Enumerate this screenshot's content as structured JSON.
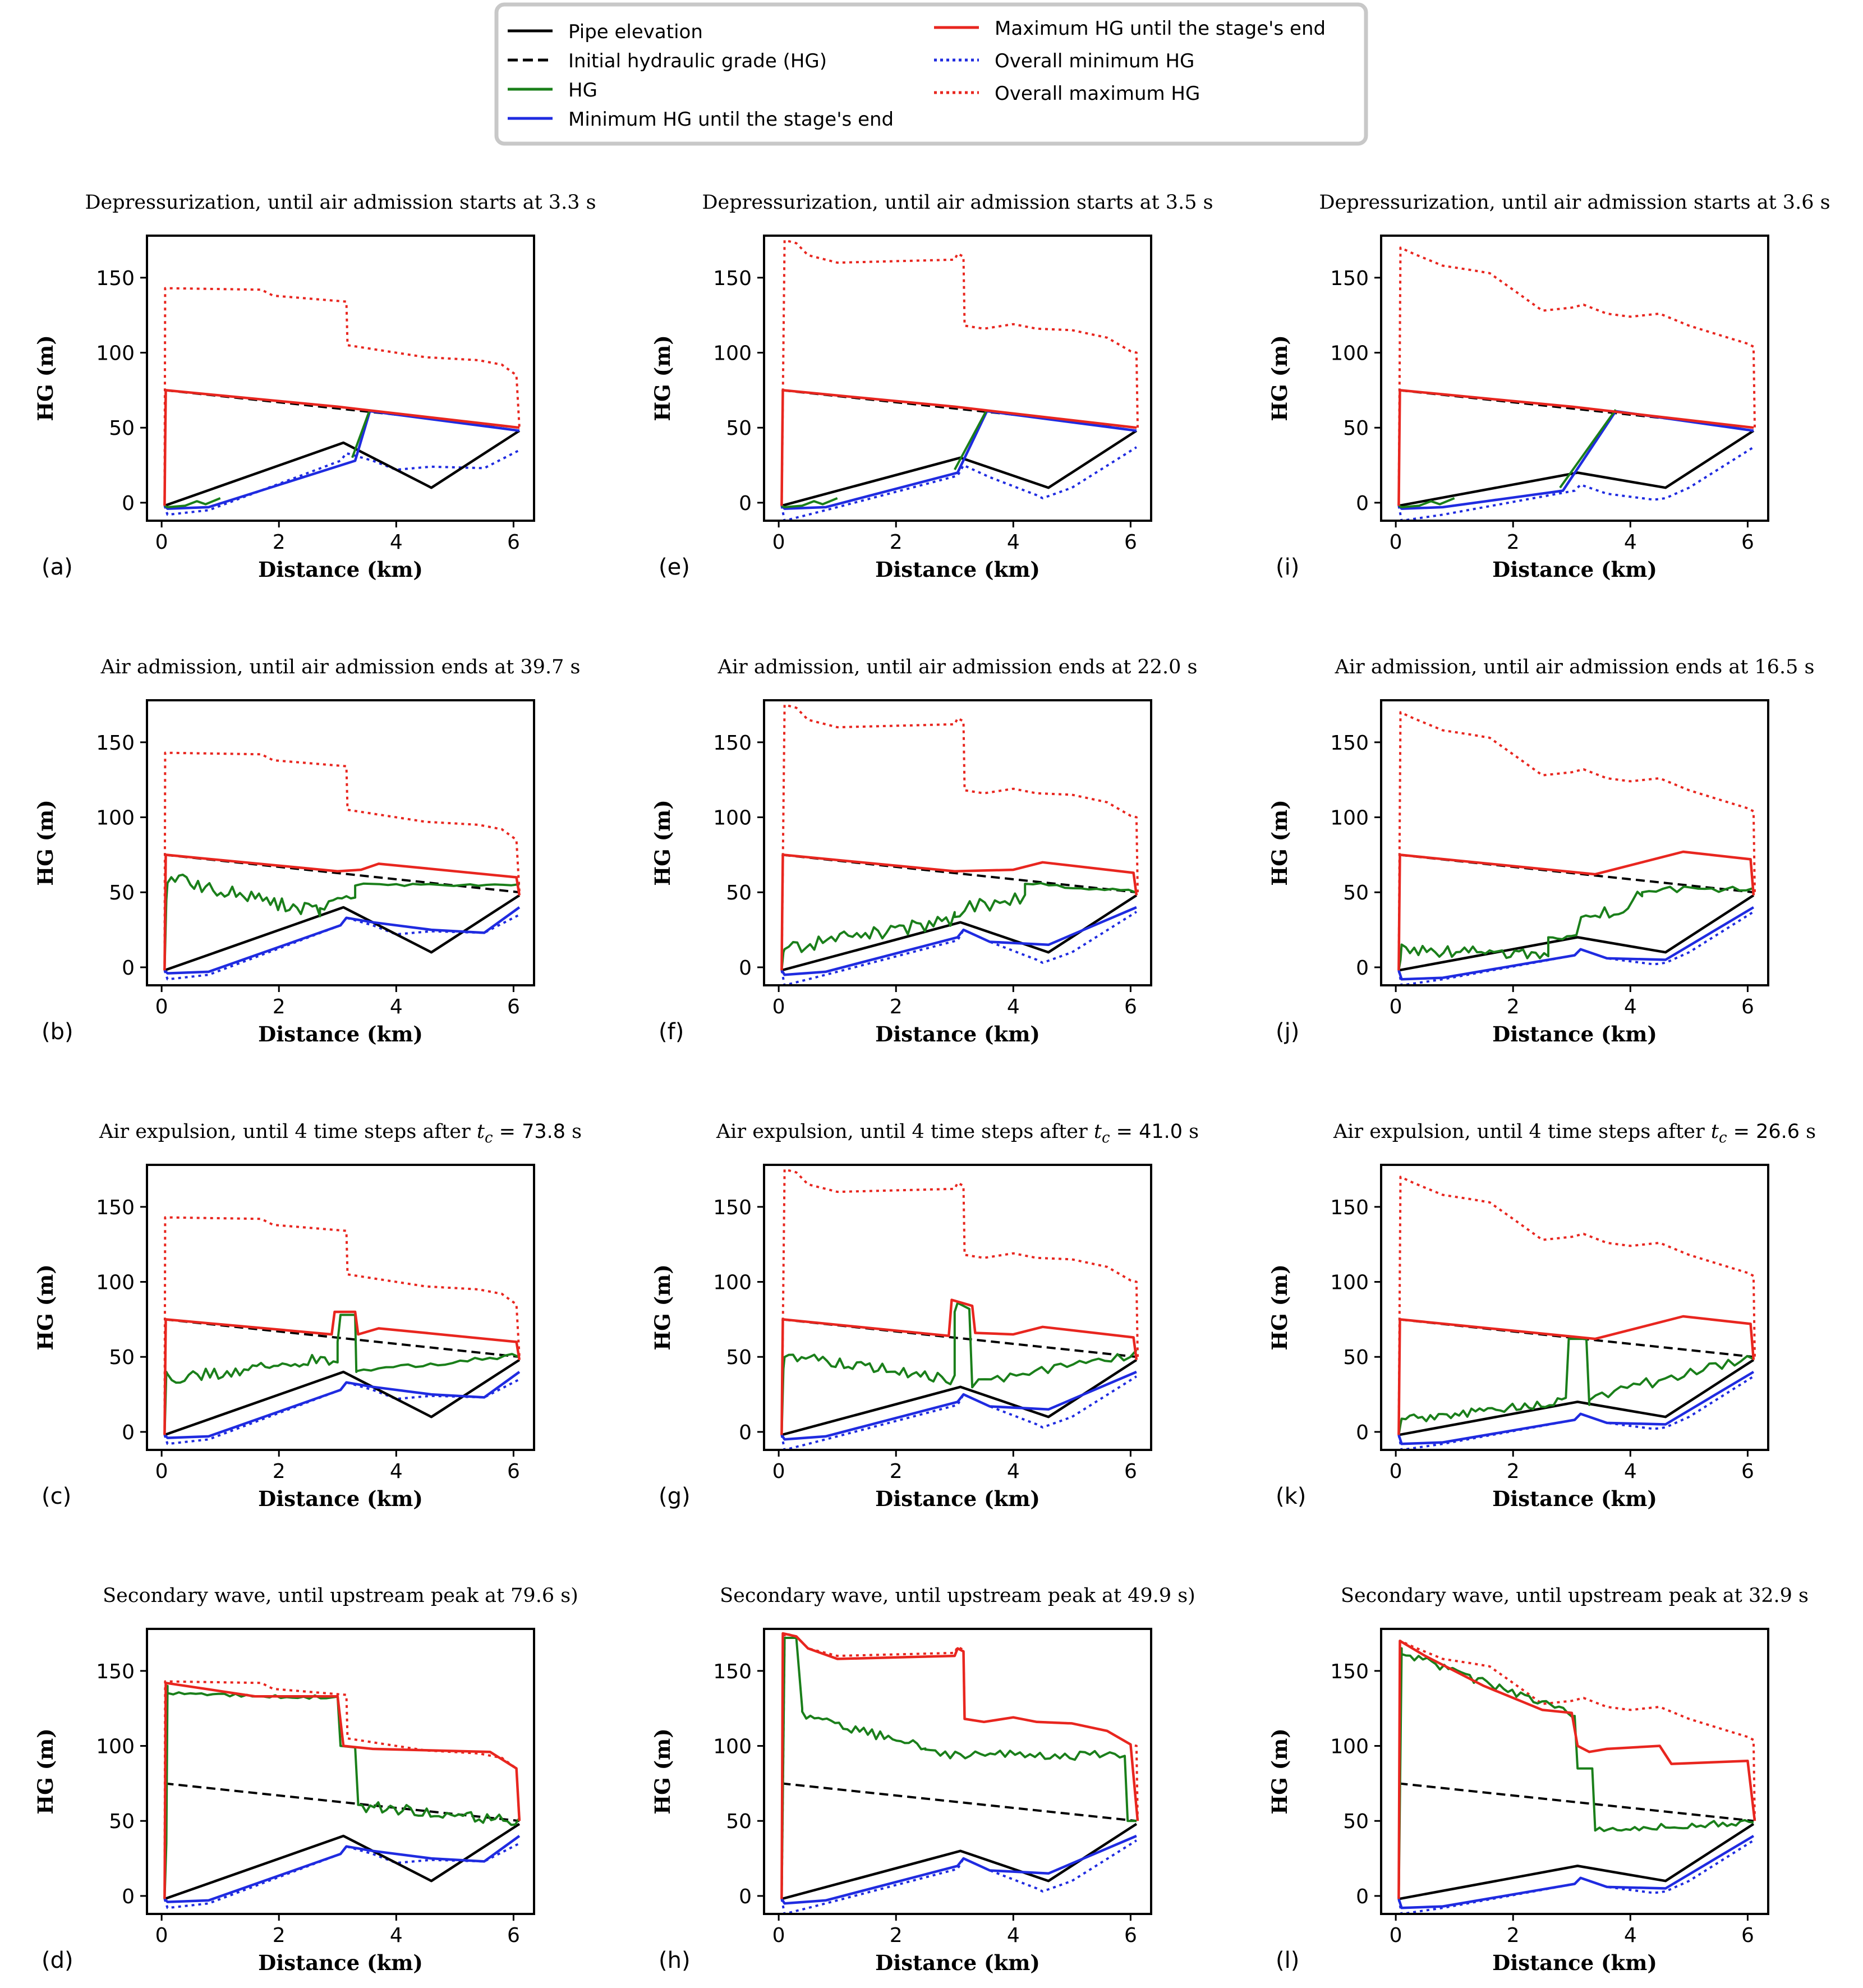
{
  "colors": {
    "pipe": "#000000",
    "initial_hg": "#000000",
    "hg": "#1a7f1a",
    "min_hg": "#1f2be0",
    "max_hg": "#e8261f",
    "overall_min": "#1f2be0",
    "overall_max": "#e8261f"
  },
  "legend": {
    "items": [
      {
        "key": "pipe",
        "label": "Pipe elevation",
        "style": "solid",
        "color": "#000000"
      },
      {
        "key": "initial_hg",
        "label": "Initial hydraulic grade (HG)",
        "style": "dashed",
        "color": "#000000"
      },
      {
        "key": "hg",
        "label": "HG",
        "style": "solid",
        "color": "#1a7f1a"
      },
      {
        "key": "min_hg",
        "label": "Minimum HG until the stage's end",
        "style": "solid",
        "color": "#1f2be0"
      },
      {
        "key": "max_hg",
        "label": "Maximum HG until the stage's end",
        "style": "solid",
        "color": "#e8261f"
      },
      {
        "key": "overall_min",
        "label": "Overall minimum HG",
        "style": "dotted",
        "color": "#1f2be0"
      },
      {
        "key": "overall_max",
        "label": "Overall maximum HG",
        "style": "dotted",
        "color": "#e8261f"
      }
    ]
  },
  "chart_data": [
    {
      "id": "a",
      "panel_label": "(a)",
      "title": "Depressurization, until air admission starts at 3.3 s",
      "case": 1,
      "stage": "dep",
      "air_start": 3.3,
      "air_end": 3.55
    },
    {
      "id": "b",
      "panel_label": "(b)",
      "title": "Air admission, until air admission ends at 39.7 s",
      "case": 1,
      "stage": "adm"
    },
    {
      "id": "c",
      "panel_label": "(c)",
      "title_prefix": "Air expulsion, until 4 time steps after ",
      "title_math": "t",
      "title_sub": "c",
      "title_value": " = 73.8",
      "title_suffix": " s",
      "case": 1,
      "stage": "exp"
    },
    {
      "id": "d",
      "panel_label": "(d)",
      "title": "Secondary wave, until upstream peak at 79.6 s)",
      "case": 1,
      "stage": "sec"
    },
    {
      "id": "e",
      "panel_label": "(e)",
      "title": "Depressurization, until air admission starts at 3.5 s",
      "case": 2,
      "stage": "dep",
      "air_start": 3.05,
      "air_end": 3.55
    },
    {
      "id": "f",
      "panel_label": "(f)",
      "title": "Air admission, until air admission ends at 22.0 s",
      "case": 2,
      "stage": "adm"
    },
    {
      "id": "g",
      "panel_label": "(g)",
      "title_prefix": "Air expulsion, until 4 time steps after ",
      "title_math": "t",
      "title_sub": "c",
      "title_value": " = 41.0",
      "title_suffix": " s",
      "case": 2,
      "stage": "exp"
    },
    {
      "id": "h",
      "panel_label": "(h)",
      "title": "Secondary wave, until upstream peak at 49.9 s)",
      "case": 2,
      "stage": "sec"
    },
    {
      "id": "i",
      "panel_label": "(i)",
      "title": "Depressurization, until air admission starts at 3.6 s",
      "case": 3,
      "stage": "dep",
      "air_start": 2.85,
      "air_end": 3.75
    },
    {
      "id": "j",
      "panel_label": "(j)",
      "title": "Air admission, until air admission ends at 16.5 s",
      "case": 3,
      "stage": "adm"
    },
    {
      "id": "k",
      "panel_label": "(k)",
      "title_prefix": "Air expulsion, until 4 time steps after ",
      "title_math": "t",
      "title_sub": "c",
      "title_value": " = 26.6",
      "title_suffix": " s",
      "case": 3,
      "stage": "exp"
    },
    {
      "id": "l",
      "panel_label": "(l)",
      "title": "Secondary wave, until upstream peak at 32.9 s",
      "case": 3,
      "stage": "sec"
    }
  ],
  "axes": {
    "xlabel": "Distance (km)",
    "ylabel": "HG (m)",
    "xlim": [
      -0.25,
      6.35
    ],
    "ylim": [
      -12,
      178
    ],
    "xticks": [
      0,
      2,
      4,
      6
    ],
    "yticks": [
      0,
      50,
      100,
      150
    ]
  },
  "cases": {
    "1": {
      "pipe": [
        [
          0.05,
          -2
        ],
        [
          3.1,
          40
        ],
        [
          4.6,
          10
        ],
        [
          6.1,
          48
        ]
      ],
      "initial_hg": [
        [
          0.05,
          75
        ],
        [
          6.1,
          50
        ]
      ],
      "overall_max": [
        [
          0.05,
          -2
        ],
        [
          0.06,
          143
        ],
        [
          1.7,
          142
        ],
        [
          1.9,
          138
        ],
        [
          3.15,
          134
        ],
        [
          3.17,
          105
        ],
        [
          4.5,
          97
        ],
        [
          5.4,
          95
        ],
        [
          5.8,
          92
        ],
        [
          6.05,
          85
        ],
        [
          6.1,
          50
        ]
      ],
      "overall_min": [
        [
          0.05,
          -2
        ],
        [
          0.1,
          -8
        ],
        [
          0.8,
          -5
        ],
        [
          3.05,
          28
        ],
        [
          3.15,
          33
        ],
        [
          3.6,
          28
        ],
        [
          4.0,
          22
        ],
        [
          4.6,
          24
        ],
        [
          5.5,
          23
        ],
        [
          6.1,
          35
        ]
      ],
      "min_hg": [
        [
          0.05,
          -2
        ],
        [
          0.1,
          -4
        ],
        [
          0.8,
          -3
        ],
        [
          3.05,
          28
        ],
        [
          3.15,
          33
        ],
        [
          3.6,
          30
        ],
        [
          4.6,
          25
        ],
        [
          5.5,
          23
        ],
        [
          6.1,
          40
        ]
      ],
      "max_sec": [
        [
          0.05,
          -2
        ],
        [
          0.07,
          142
        ],
        [
          1.6,
          133
        ],
        [
          3.0,
          133
        ],
        [
          3.1,
          100
        ],
        [
          3.6,
          98
        ],
        [
          5.6,
          96
        ],
        [
          6.05,
          85
        ],
        [
          6.1,
          50
        ]
      ]
    },
    "2": {
      "pipe": [
        [
          0.05,
          -2
        ],
        [
          3.1,
          30
        ],
        [
          4.6,
          10
        ],
        [
          6.1,
          48
        ]
      ],
      "initial_hg": [
        [
          0.05,
          75
        ],
        [
          6.1,
          50
        ]
      ],
      "overall_max": [
        [
          0.05,
          -2
        ],
        [
          0.1,
          175
        ],
        [
          0.3,
          173
        ],
        [
          0.5,
          165
        ],
        [
          1.0,
          160
        ],
        [
          3.0,
          162
        ],
        [
          3.05,
          166
        ],
        [
          3.15,
          164
        ],
        [
          3.17,
          118
        ],
        [
          3.5,
          116
        ],
        [
          4.0,
          119
        ],
        [
          4.4,
          116
        ],
        [
          5.0,
          115
        ],
        [
          5.6,
          110
        ],
        [
          6.0,
          101
        ],
        [
          6.1,
          100
        ],
        [
          6.12,
          50
        ]
      ],
      "overall_min": [
        [
          0.05,
          -2
        ],
        [
          0.1,
          -12
        ],
        [
          0.8,
          -5
        ],
        [
          3.05,
          18
        ],
        [
          3.15,
          25
        ],
        [
          3.6,
          17
        ],
        [
          4.4,
          5
        ],
        [
          4.5,
          3
        ],
        [
          5.0,
          10
        ],
        [
          6.1,
          37
        ]
      ],
      "min_hg": [
        [
          0.05,
          -2
        ],
        [
          0.1,
          -5
        ],
        [
          0.8,
          -3
        ],
        [
          3.05,
          20
        ],
        [
          3.15,
          25
        ],
        [
          3.6,
          17
        ],
        [
          4.6,
          15
        ],
        [
          6.1,
          40
        ]
      ],
      "max_sec": [
        [
          0.05,
          -2
        ],
        [
          0.07,
          175
        ],
        [
          0.3,
          173
        ],
        [
          0.5,
          165
        ],
        [
          1.0,
          158
        ],
        [
          3.0,
          160
        ],
        [
          3.05,
          165
        ],
        [
          3.15,
          163
        ],
        [
          3.17,
          118
        ],
        [
          3.5,
          116
        ],
        [
          4.0,
          119
        ],
        [
          4.4,
          116
        ],
        [
          5.0,
          115
        ],
        [
          5.6,
          110
        ],
        [
          6.0,
          101
        ],
        [
          6.12,
          50
        ]
      ]
    },
    "3": {
      "pipe": [
        [
          0.05,
          -2
        ],
        [
          3.1,
          20
        ],
        [
          4.6,
          10
        ],
        [
          6.1,
          48
        ]
      ],
      "initial_hg": [
        [
          0.05,
          75
        ],
        [
          6.1,
          50
        ]
      ],
      "overall_max": [
        [
          0.05,
          -2
        ],
        [
          0.08,
          170
        ],
        [
          0.3,
          166
        ],
        [
          0.8,
          158
        ],
        [
          1.3,
          155
        ],
        [
          1.6,
          153
        ],
        [
          2.0,
          142
        ],
        [
          2.5,
          128
        ],
        [
          3.0,
          130
        ],
        [
          3.2,
          132
        ],
        [
          3.6,
          126
        ],
        [
          4.0,
          124
        ],
        [
          4.5,
          126
        ],
        [
          5.0,
          118
        ],
        [
          5.5,
          112
        ],
        [
          6.0,
          106
        ],
        [
          6.1,
          104
        ],
        [
          6.12,
          50
        ]
      ],
      "overall_min": [
        [
          0.05,
          -2
        ],
        [
          0.1,
          -12
        ],
        [
          0.8,
          -8
        ],
        [
          3.05,
          8
        ],
        [
          3.15,
          12
        ],
        [
          3.6,
          6
        ],
        [
          4.4,
          2
        ],
        [
          4.6,
          3
        ],
        [
          5.0,
          10
        ],
        [
          6.1,
          37
        ]
      ],
      "min_hg": [
        [
          0.05,
          -2
        ],
        [
          0.1,
          -8
        ],
        [
          0.8,
          -7
        ],
        [
          3.05,
          8
        ],
        [
          3.15,
          12
        ],
        [
          3.6,
          6
        ],
        [
          4.6,
          5
        ],
        [
          6.1,
          40
        ]
      ],
      "max_sec": [
        [
          0.05,
          -2
        ],
        [
          0.07,
          170
        ],
        [
          0.5,
          160
        ],
        [
          1.5,
          140
        ],
        [
          2.5,
          124
        ],
        [
          3.0,
          122
        ],
        [
          3.1,
          100
        ],
        [
          3.3,
          96
        ],
        [
          3.6,
          98
        ],
        [
          4.5,
          100
        ],
        [
          4.7,
          88
        ],
        [
          6.0,
          90
        ],
        [
          6.12,
          50
        ]
      ]
    }
  }
}
